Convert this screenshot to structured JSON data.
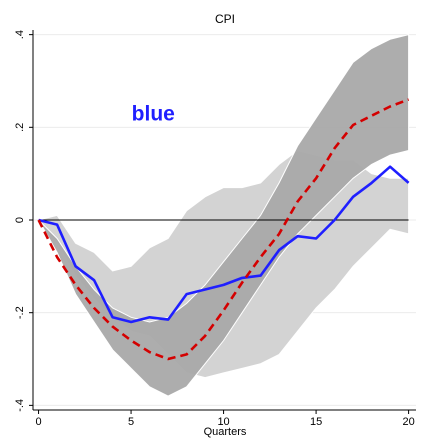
{
  "chart_data": {
    "type": "line",
    "title": "CPI",
    "xlabel": "Quarters",
    "ylabel": "",
    "xlim": [
      -0.3,
      20.4
    ],
    "ylim": [
      -0.41,
      0.41
    ],
    "x_ticks": [
      0,
      5,
      10,
      15,
      20
    ],
    "x_tick_labels": [
      "0",
      "5",
      "10",
      "15",
      "20"
    ],
    "y_ticks": [
      -0.4,
      -0.2,
      0,
      0.2,
      0.4
    ],
    "y_tick_labels": [
      "-.4",
      "-.2",
      "0",
      ".2",
      ".4"
    ],
    "grid": "horizontal",
    "zero_line": true,
    "annotation": {
      "text": "blue",
      "x": 6.2,
      "y": 0.215,
      "color": "#1f1fff"
    },
    "x": [
      0,
      1,
      2,
      3,
      4,
      5,
      6,
      7,
      8,
      9,
      10,
      11,
      12,
      13,
      14,
      15,
      16,
      17,
      18,
      19,
      20
    ],
    "band_light": {
      "color": "#d3d3d3",
      "upper": [
        0.0,
        0.01,
        -0.05,
        -0.07,
        -0.11,
        -0.1,
        -0.06,
        -0.04,
        0.02,
        0.05,
        0.07,
        0.07,
        0.08,
        0.12,
        0.15,
        0.14,
        0.13,
        0.13,
        0.1,
        0.09,
        0.09
      ],
      "lower": [
        0.0,
        -0.05,
        -0.12,
        -0.17,
        -0.21,
        -0.24,
        -0.25,
        -0.29,
        -0.33,
        -0.34,
        -0.33,
        -0.32,
        -0.31,
        -0.29,
        -0.24,
        -0.19,
        -0.15,
        -0.1,
        -0.06,
        -0.02,
        -0.03
      ]
    },
    "band_dark": {
      "color": "#a9a9a9",
      "upper": [
        0.0,
        -0.04,
        -0.1,
        -0.15,
        -0.19,
        -0.21,
        -0.22,
        -0.21,
        -0.18,
        -0.14,
        -0.09,
        -0.04,
        0.01,
        0.08,
        0.16,
        0.22,
        0.28,
        0.34,
        0.37,
        0.39,
        0.4
      ],
      "lower": [
        0.0,
        -0.07,
        -0.16,
        -0.22,
        -0.28,
        -0.32,
        -0.36,
        -0.38,
        -0.36,
        -0.31,
        -0.26,
        -0.2,
        -0.14,
        -0.08,
        -0.03,
        0.01,
        0.05,
        0.09,
        0.12,
        0.14,
        0.15
      ]
    },
    "series": [
      {
        "color": "#1f1fff",
        "style": "solid",
        "values": [
          0.0,
          -0.01,
          -0.1,
          -0.13,
          -0.21,
          -0.22,
          -0.21,
          -0.215,
          -0.16,
          -0.15,
          -0.14,
          -0.125,
          -0.12,
          -0.065,
          -0.035,
          -0.04,
          0.0,
          0.05,
          0.08,
          0.115,
          0.08
        ]
      },
      {
        "color": "#d40000",
        "style": "dashed",
        "values": [
          0.0,
          -0.08,
          -0.14,
          -0.19,
          -0.23,
          -0.26,
          -0.285,
          -0.3,
          -0.29,
          -0.25,
          -0.195,
          -0.135,
          -0.08,
          -0.03,
          0.04,
          0.09,
          0.155,
          0.205,
          0.225,
          0.245,
          0.26
        ]
      }
    ]
  }
}
